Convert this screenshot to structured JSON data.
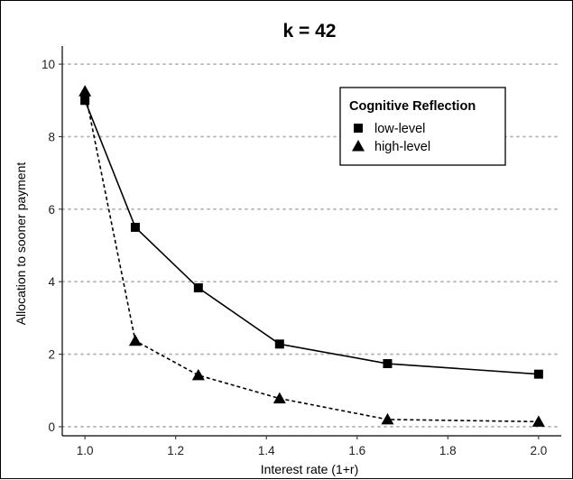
{
  "chart_data": {
    "type": "line",
    "title": "k = 42",
    "xlabel": "Interest rate (1+r)",
    "ylabel": "Allocation to sooner payment",
    "xlim": [
      0.95,
      2.05
    ],
    "ylim": [
      -0.25,
      10.5
    ],
    "xticks": [
      1.0,
      1.2,
      1.4,
      1.6,
      1.8,
      2.0
    ],
    "xtick_labels": [
      "1.0",
      "1.2",
      "1.4",
      "1.6",
      "1.8",
      "2.0"
    ],
    "yticks": [
      0,
      2,
      4,
      6,
      8,
      10
    ],
    "ytick_labels": [
      "0",
      "2",
      "4",
      "6",
      "8",
      "10"
    ],
    "grid": "horizontal dotted",
    "legend": {
      "title": "Cognitive Reflection",
      "placement": "top-right"
    },
    "series": [
      {
        "name": "low-level",
        "marker": "square",
        "line": "solid",
        "x": [
          1.0,
          1.111,
          1.25,
          1.429,
          1.667,
          2.0
        ],
        "values": [
          9.0,
          5.5,
          3.83,
          2.28,
          1.74,
          1.45
        ]
      },
      {
        "name": "high-level",
        "marker": "triangle",
        "line": "dashed",
        "x": [
          1.0,
          1.111,
          1.25,
          1.429,
          1.667,
          2.0
        ],
        "values": [
          9.25,
          2.37,
          1.42,
          0.78,
          0.2,
          0.14
        ]
      }
    ]
  }
}
